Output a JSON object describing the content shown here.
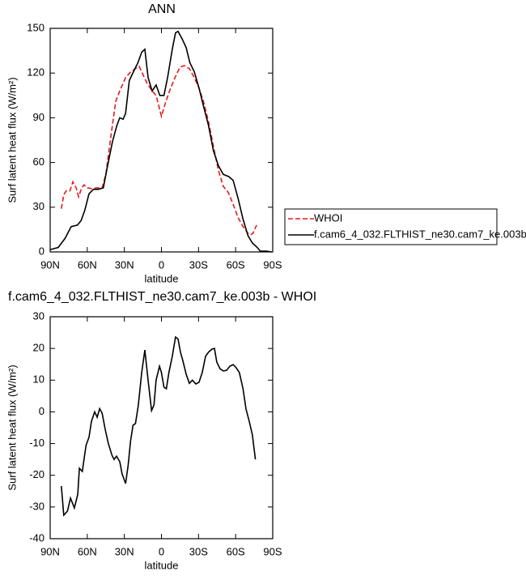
{
  "chart_data": [
    {
      "type": "line",
      "title": "ANN",
      "xlabel": "latitude",
      "ylabel": "Surf latent heat flux (W/m²)",
      "xlim": [
        90,
        -90
      ],
      "xticks": [
        {
          "value": 90,
          "label": "90N"
        },
        {
          "value": 60,
          "label": "60N"
        },
        {
          "value": 30,
          "label": "30N"
        },
        0,
        {
          "value": -30,
          "label": "30S"
        },
        {
          "value": -60,
          "label": "60S"
        },
        {
          "value": -90,
          "label": "90S"
        }
      ],
      "ylim": [
        0,
        150
      ],
      "yticks": [
        0,
        30,
        60,
        90,
        120,
        150
      ],
      "legend": "right",
      "series": [
        {
          "name": "WHOI",
          "color": "#e41a1c",
          "dashed": true,
          "x": [
            81,
            79,
            77,
            74,
            71.7,
            69,
            67,
            64.5,
            62.5,
            60,
            56.6,
            52,
            48,
            45,
            41,
            37,
            33.7,
            29,
            24.6,
            21,
            18,
            15,
            11.5,
            7.5,
            4.3,
            0,
            -3.6,
            -7,
            -11,
            -15,
            -18.6,
            -22.6,
            -26.5,
            -30.4,
            -34,
            -38,
            -42,
            -46,
            -50,
            -54,
            -58,
            -62,
            -66,
            -70,
            -72,
            -74,
            -77
          ],
          "values": [
            29,
            38.5,
            41,
            41,
            47,
            43,
            37,
            43,
            45,
            43,
            42.5,
            43,
            43,
            52,
            77,
            101,
            108,
            117,
            121,
            123,
            124.5,
            119,
            113,
            108,
            105,
            91,
            101,
            109,
            117,
            124,
            125,
            123,
            117,
            110,
            101,
            87.5,
            71,
            55,
            44,
            40,
            32,
            23,
            17,
            12.5,
            11.4,
            12.5,
            18
          ]
        },
        {
          "name": "f.cam6_4_032.FLTHIST_ne30.cam7_ke.003b",
          "color": "#000000",
          "dashed": false,
          "x": [
            90,
            83.5,
            78,
            73,
            68,
            65,
            62,
            58.6,
            55,
            51,
            47,
            43.5,
            39.6,
            36,
            33.7,
            31,
            29,
            26,
            22.6,
            19,
            16,
            13.4,
            10.8,
            7.5,
            4.3,
            1.3,
            -2,
            -5,
            -8.8,
            -11.4,
            -13.4,
            -16.7,
            -20,
            -23,
            -26.5,
            -30.4,
            -34,
            -38,
            -42,
            -46,
            -50,
            -54.6,
            -58,
            -62,
            -66,
            -70,
            -73.6,
            -77.5,
            -80,
            -85,
            -89
          ],
          "values": [
            1.6,
            3,
            9,
            17,
            18,
            21,
            28,
            39,
            42,
            42,
            43,
            58,
            74,
            85,
            90,
            89,
            93,
            115,
            121,
            127,
            134,
            136,
            117,
            108,
            112,
            105,
            105,
            117,
            136,
            147,
            148,
            143,
            137,
            127,
            121,
            110,
            98,
            85,
            68,
            58,
            52,
            50.5,
            48,
            36,
            22,
            11,
            6,
            3,
            0.5,
            0.5,
            0
          ]
        }
      ]
    },
    {
      "type": "line",
      "title": "f.cam6_4_032.FLTHIST_ne30.cam7_ke.003b - WHOI",
      "xlabel": "latitude",
      "ylabel": "Surf latent heat flux (W/m²)",
      "xlim": [
        90,
        -90
      ],
      "xticks": [
        {
          "value": 90,
          "label": "90N"
        },
        {
          "value": 60,
          "label": "60N"
        },
        {
          "value": 30,
          "label": "30N"
        },
        0,
        {
          "value": -30,
          "label": "30S"
        },
        {
          "value": -60,
          "label": "60S"
        },
        {
          "value": -90,
          "label": "90S"
        }
      ],
      "ylim": [
        -40,
        30
      ],
      "yticks": [
        -40,
        -30,
        -20,
        -10,
        0,
        10,
        20,
        30
      ],
      "series": [
        {
          "color": "#000000",
          "dashed": false,
          "x": [
            81,
            79,
            76,
            73.6,
            70.4,
            67.7,
            66.4,
            64,
            61,
            58.6,
            56.6,
            54,
            52,
            50,
            48,
            45.5,
            43,
            40,
            38.3,
            36.3,
            33.7,
            31.8,
            29,
            27,
            25,
            23,
            21,
            18.7,
            16,
            13.4,
            10.8,
            8,
            6,
            4.3,
            1.6,
            0,
            -2,
            -4,
            -6,
            -8.8,
            -11.4,
            -13.4,
            -15.4,
            -17.3,
            -20,
            -22.6,
            -25,
            -27.8,
            -30.4,
            -33,
            -35.7,
            -38,
            -41,
            -42.9,
            -44.8,
            -47.4,
            -50,
            -52.7,
            -55.3,
            -58,
            -60.5,
            -63,
            -66,
            -68.4,
            -71,
            -73.6,
            -76
          ],
          "values": [
            -23.4,
            -32.6,
            -31.3,
            -27.2,
            -30.3,
            -26,
            -17.8,
            -18.8,
            -10.6,
            -8,
            -3,
            0,
            -1.7,
            1,
            -0.4,
            -5.5,
            -9.9,
            -13.7,
            -15,
            -14,
            -15.7,
            -19.6,
            -22.6,
            -17,
            -9.3,
            -4.2,
            -3.7,
            2,
            12.4,
            19.5,
            10,
            0.4,
            2.2,
            10,
            14.4,
            12.4,
            7.8,
            7.3,
            12.4,
            17.5,
            23.6,
            23,
            18.8,
            16.2,
            11.8,
            9,
            10,
            8.8,
            9.3,
            12.4,
            17.5,
            18.8,
            19.8,
            20,
            15.7,
            13.6,
            12.9,
            13.1,
            14.4,
            14.9,
            13.9,
            12.4,
            7.3,
            0.9,
            -3,
            -7.3,
            -15
          ]
        }
      ]
    }
  ]
}
